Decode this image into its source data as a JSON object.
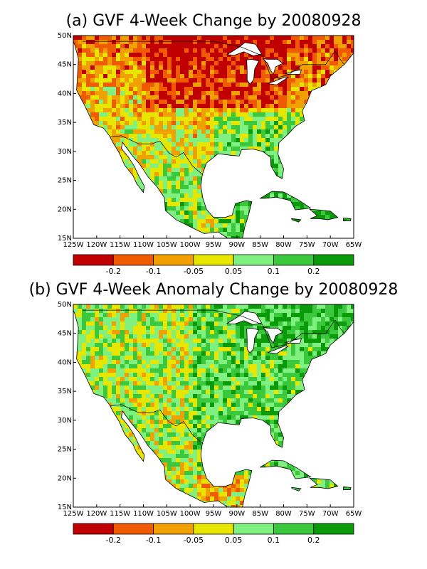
{
  "panels": [
    {
      "title": "(a) GVF 4-Week Change by 20080928",
      "lat_labels": [
        "50N",
        "45N",
        "40N",
        "35N",
        "30N",
        "25N",
        "20N",
        "15N"
      ],
      "lon_labels": [
        "125W",
        "120W",
        "115W",
        "110W",
        "105W",
        "100W",
        "95W",
        "90W",
        "85W",
        "80W",
        "75W",
        "70W",
        "65W"
      ],
      "colorbar": {
        "colors": [
          "#c00000",
          "#f05a00",
          "#f0a000",
          "#e6e600",
          "#80f080",
          "#3cc83c",
          "#0a9a0a"
        ],
        "labels": [
          "-0.2",
          "-0.1",
          "-0.05",
          "0.05",
          "0.1",
          "0.2"
        ]
      }
    },
    {
      "title": "(b) GVF 4-Week Anomaly Change by 20080928",
      "lat_labels": [
        "50N",
        "45N",
        "40N",
        "35N",
        "30N",
        "25N",
        "20N",
        "15N"
      ],
      "lon_labels": [
        "125W",
        "120W",
        "115W",
        "110W",
        "105W",
        "100W",
        "95W",
        "90W",
        "85W",
        "80W",
        "75W",
        "70W",
        "65W"
      ],
      "colorbar": {
        "colors": [
          "#c00000",
          "#f05a00",
          "#f0a000",
          "#e6e600",
          "#80f080",
          "#3cc83c",
          "#0a9a0a"
        ],
        "labels": [
          "-0.2",
          "-0.1",
          "-0.05",
          "0.05",
          "0.1",
          "0.2"
        ]
      }
    }
  ]
}
